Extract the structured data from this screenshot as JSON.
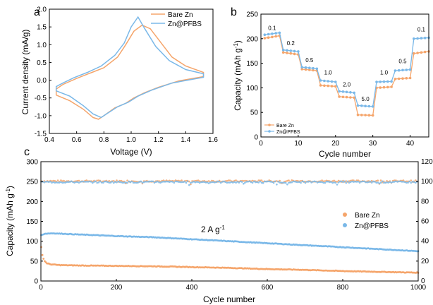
{
  "colors": {
    "bare": "#f5a56b",
    "pfbs": "#7ab8e8"
  },
  "chart_data": [
    {
      "id": "a",
      "type": "line",
      "panel_label": "a",
      "xlabel": "Voltage (V)",
      "ylabel": "Current density (mA/g)",
      "xlim": [
        0.4,
        1.6
      ],
      "ylim": [
        -1.5,
        2.0
      ],
      "xticks": [
        "0.4",
        "0.6",
        "0.8",
        "1.0",
        "1.2",
        "1.4",
        "1.6"
      ],
      "yticks": [
        "-1.5",
        "-1.0",
        "-0.5",
        "0.0",
        "0.5",
        "1.0",
        "1.5",
        "2.0"
      ],
      "legend_position": "top-right",
      "series": [
        {
          "name": "Bare Zn",
          "color_key": "bare",
          "points": [
            [
              0.45,
              -0.42
            ],
            [
              0.55,
              -0.58
            ],
            [
              0.65,
              -0.82
            ],
            [
              0.72,
              -1.05
            ],
            [
              0.76,
              -1.1
            ],
            [
              0.8,
              -1.0
            ],
            [
              0.88,
              -0.78
            ],
            [
              0.96,
              -0.65
            ],
            [
              1.02,
              -0.5
            ],
            [
              1.1,
              -0.35
            ],
            [
              1.2,
              -0.2
            ],
            [
              1.35,
              -0.02
            ],
            [
              1.53,
              0.1
            ],
            [
              1.53,
              0.22
            ],
            [
              1.4,
              0.4
            ],
            [
              1.3,
              0.65
            ],
            [
              1.22,
              1.05
            ],
            [
              1.14,
              1.45
            ],
            [
              1.08,
              1.55
            ],
            [
              1.02,
              1.38
            ],
            [
              0.96,
              1.0
            ],
            [
              0.9,
              0.65
            ],
            [
              0.8,
              0.35
            ],
            [
              0.7,
              0.2
            ],
            [
              0.6,
              0.05
            ],
            [
              0.5,
              -0.12
            ],
            [
              0.45,
              -0.25
            ],
            [
              0.45,
              -0.42
            ]
          ]
        },
        {
          "name": "Zn@PFBS",
          "color_key": "pfbs",
          "points": [
            [
              0.45,
              -0.3
            ],
            [
              0.55,
              -0.45
            ],
            [
              0.65,
              -0.72
            ],
            [
              0.72,
              -0.95
            ],
            [
              0.78,
              -1.05
            ],
            [
              0.82,
              -0.95
            ],
            [
              0.9,
              -0.75
            ],
            [
              0.98,
              -0.62
            ],
            [
              1.05,
              -0.45
            ],
            [
              1.15,
              -0.28
            ],
            [
              1.3,
              -0.08
            ],
            [
              1.53,
              0.08
            ],
            [
              1.53,
              0.18
            ],
            [
              1.4,
              0.3
            ],
            [
              1.28,
              0.55
            ],
            [
              1.18,
              0.95
            ],
            [
              1.1,
              1.45
            ],
            [
              1.05,
              1.78
            ],
            [
              1.0,
              1.5
            ],
            [
              0.95,
              1.05
            ],
            [
              0.88,
              0.7
            ],
            [
              0.78,
              0.4
            ],
            [
              0.68,
              0.22
            ],
            [
              0.58,
              0.07
            ],
            [
              0.5,
              -0.08
            ],
            [
              0.45,
              -0.18
            ],
            [
              0.45,
              -0.3
            ]
          ]
        }
      ]
    },
    {
      "id": "b",
      "type": "line",
      "panel_label": "b",
      "xlabel": "Cycle number",
      "ylabel": "Capacity (mAh g-1)",
      "xlim": [
        0,
        45
      ],
      "ylim": [
        0,
        250
      ],
      "xticks": [
        "0",
        "10",
        "20",
        "30",
        "40"
      ],
      "yticks": [
        "0",
        "50",
        "100",
        "150",
        "200",
        "250"
      ],
      "legend_position": "bottom-left",
      "rate_annotations": [
        {
          "label": "0.1",
          "x": 3,
          "y": 218
        },
        {
          "label": "0.2",
          "x": 8,
          "y": 187
        },
        {
          "label": "0.5",
          "x": 13,
          "y": 152
        },
        {
          "label": "1.0",
          "x": 18,
          "y": 127
        },
        {
          "label": "2.0",
          "x": 23,
          "y": 103
        },
        {
          "label": "5.0",
          "x": 28,
          "y": 73
        },
        {
          "label": "1.0",
          "x": 33,
          "y": 127
        },
        {
          "label": "0.5",
          "x": 38,
          "y": 150
        },
        {
          "label": "0.1",
          "x": 43,
          "y": 215
        }
      ],
      "series": [
        {
          "name": "Bare Zn",
          "color_key": "bare",
          "levels": [
            {
              "from": 1,
              "to": 5,
              "start": 201,
              "end": 206
            },
            {
              "from": 6,
              "to": 10,
              "start": 172,
              "end": 168
            },
            {
              "from": 11,
              "to": 15,
              "start": 138,
              "end": 135
            },
            {
              "from": 16,
              "to": 20,
              "start": 105,
              "end": 103
            },
            {
              "from": 21,
              "to": 25,
              "start": 82,
              "end": 80
            },
            {
              "from": 26,
              "to": 30,
              "start": 45,
              "end": 44
            },
            {
              "from": 31,
              "to": 35,
              "start": 100,
              "end": 102
            },
            {
              "from": 36,
              "to": 40,
              "start": 118,
              "end": 120
            },
            {
              "from": 41,
              "to": 45,
              "start": 170,
              "end": 174
            }
          ]
        },
        {
          "name": "Zn@PFBS",
          "color_key": "pfbs",
          "levels": [
            {
              "from": 1,
              "to": 5,
              "start": 208,
              "end": 212
            },
            {
              "from": 6,
              "to": 10,
              "start": 177,
              "end": 174
            },
            {
              "from": 11,
              "to": 15,
              "start": 142,
              "end": 139
            },
            {
              "from": 16,
              "to": 20,
              "start": 115,
              "end": 112
            },
            {
              "from": 21,
              "to": 25,
              "start": 93,
              "end": 90
            },
            {
              "from": 26,
              "to": 30,
              "start": 64,
              "end": 62
            },
            {
              "from": 31,
              "to": 35,
              "start": 112,
              "end": 113
            },
            {
              "from": 36,
              "to": 40,
              "start": 135,
              "end": 137
            },
            {
              "from": 41,
              "to": 45,
              "start": 200,
              "end": 202
            }
          ]
        }
      ]
    },
    {
      "id": "c",
      "type": "scatter",
      "panel_label": "c",
      "xlabel": "Cycle number",
      "ylabel": "Capacity (mAh g-1)",
      "y2label": "",
      "xlim": [
        0,
        1000
      ],
      "ylim": [
        0,
        300
      ],
      "y2lim": [
        0,
        120
      ],
      "xticks": [
        "0",
        "200",
        "400",
        "600",
        "800",
        "1000"
      ],
      "yticks": [
        "0",
        "50",
        "100",
        "150",
        "200",
        "250",
        "300"
      ],
      "y2ticks": [
        "0",
        "20",
        "40",
        "60",
        "80",
        "100",
        "120"
      ],
      "annotation": "2 A g-1",
      "legend_position": "right",
      "series": [
        {
          "name": "Bare Zn",
          "color_key": "bare",
          "axis": "left",
          "capacity_curve": [
            [
              1,
              85
            ],
            [
              3,
              70
            ],
            [
              6,
              58
            ],
            [
              10,
              50
            ],
            [
              15,
              45
            ],
            [
              25,
              42
            ],
            [
              50,
              40
            ],
            [
              100,
              39
            ],
            [
              200,
              38
            ],
            [
              300,
              37
            ],
            [
              400,
              35
            ],
            [
              500,
              33
            ],
            [
              600,
              30
            ],
            [
              700,
              28
            ],
            [
              800,
              25
            ],
            [
              900,
              23
            ],
            [
              1000,
              21
            ]
          ],
          "coulombic_efficiency": 100.5
        },
        {
          "name": "Zn@PFBS",
          "color_key": "pfbs",
          "axis": "left",
          "capacity_curve": [
            [
              1,
              115
            ],
            [
              10,
              119
            ],
            [
              30,
              120
            ],
            [
              100,
              117
            ],
            [
              200,
              113
            ],
            [
              300,
              110
            ],
            [
              400,
              105
            ],
            [
              500,
              100
            ],
            [
              600,
              95
            ],
            [
              700,
              90
            ],
            [
              800,
              85
            ],
            [
              900,
              80
            ],
            [
              1000,
              75
            ]
          ],
          "coulombic_efficiency": 99.5
        }
      ]
    }
  ]
}
